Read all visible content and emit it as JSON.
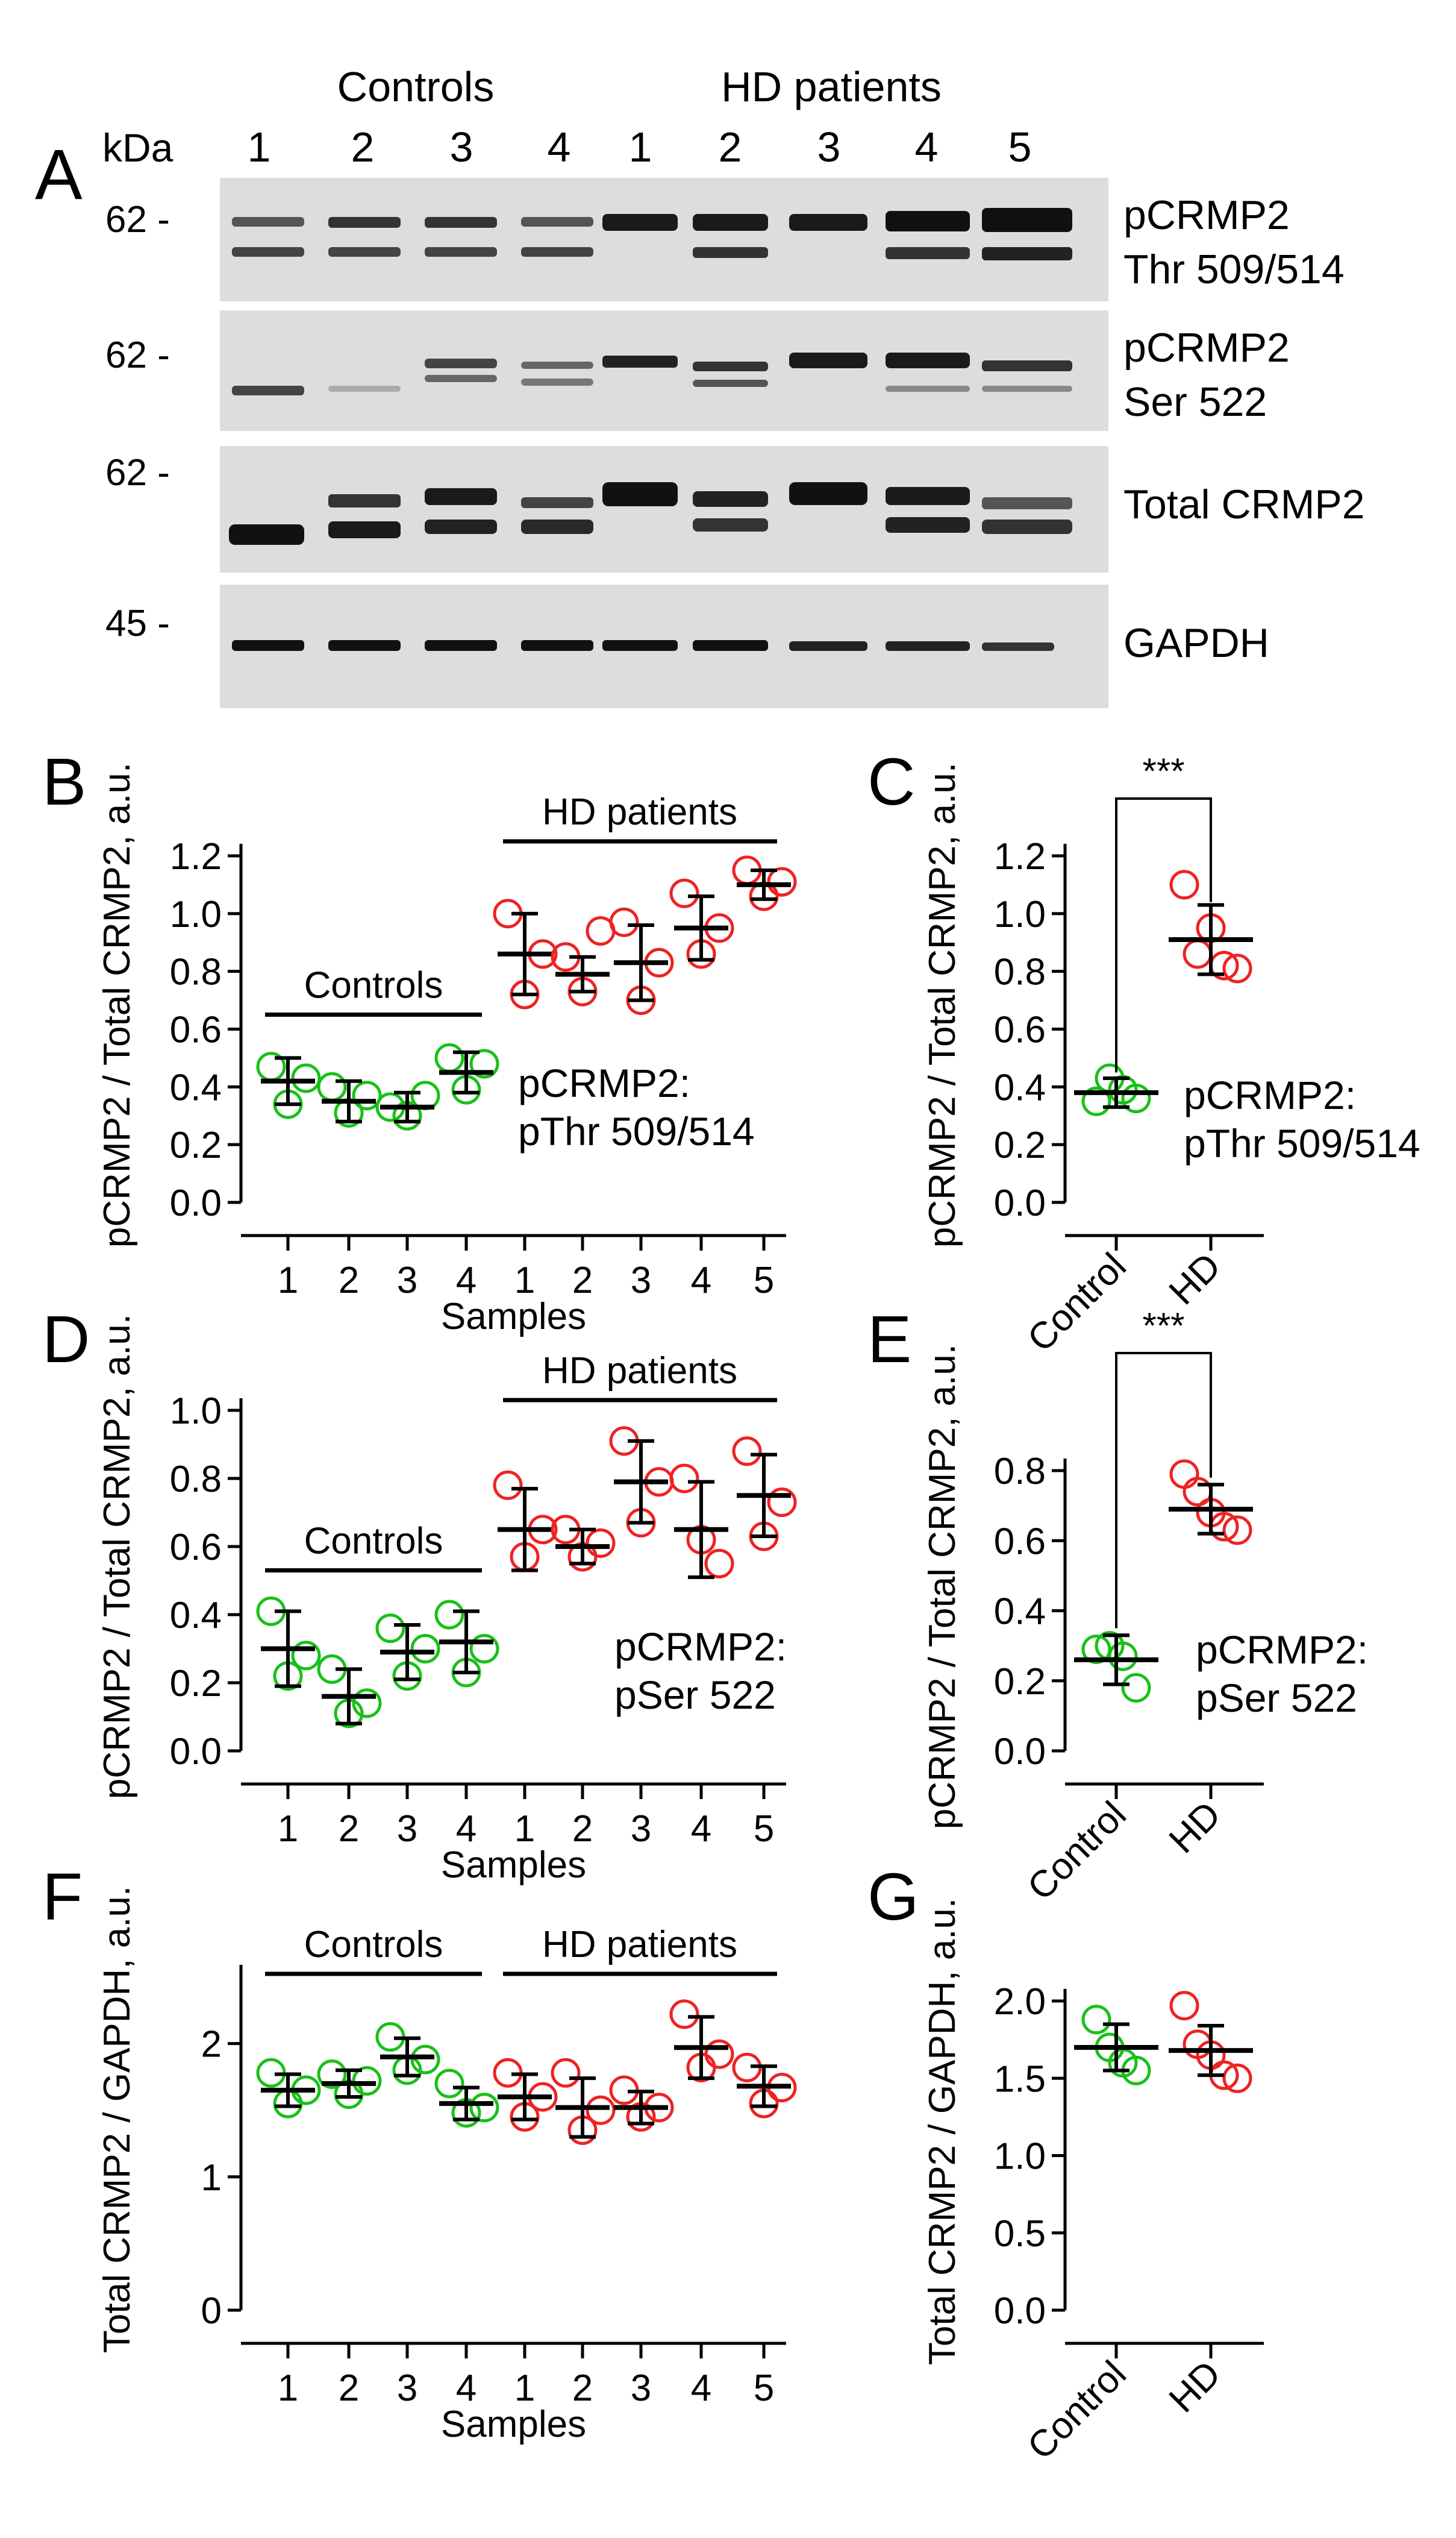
{
  "panel_letters": {
    "A": "A",
    "B": "B",
    "C": "C",
    "D": "D",
    "E": "E",
    "F": "F",
    "G": "G"
  },
  "blot": {
    "kda_label": "kDa",
    "group_controls": "Controls",
    "group_hd": "HD patients",
    "lane_numbers": [
      "1",
      "2",
      "3",
      "4",
      "1",
      "2",
      "3",
      "4",
      "5"
    ],
    "rows": [
      {
        "marker": "62 -",
        "label_line1": "pCRMP2",
        "label_line2": "Thr 509/514"
      },
      {
        "marker": "62 -",
        "label_line1": "pCRMP2",
        "label_line2": "Ser 522"
      },
      {
        "marker": "62 -",
        "label_line1": "Total CRMP2",
        "label_line2": ""
      },
      {
        "marker": "45 -",
        "label_line1": "GAPDH",
        "label_line2": ""
      }
    ]
  },
  "colors": {
    "control": "#19c019",
    "hd": "#ee2222",
    "bar": "#000000"
  },
  "chart_data": [
    {
      "id": "B",
      "type": "scatter",
      "ylabel": "pCRMP2 / Total CRMP2, a.u.",
      "xlabel": "Samples",
      "ylim": [
        0,
        1.2
      ],
      "yticks": [
        "0.0",
        "0.2",
        "0.4",
        "0.6",
        "0.8",
        "1.0",
        "1.2"
      ],
      "categories": [
        "1",
        "2",
        "3",
        "4",
        "1",
        "2",
        "3",
        "4",
        "5"
      ],
      "group_labels": [
        "Controls",
        "HD patients"
      ],
      "annotation": [
        "pCRMP2:",
        "pThr 509/514"
      ],
      "series": [
        {
          "name": "Controls",
          "color_key": "control",
          "groups": [
            {
              "mean": 0.42,
              "err": 0.08,
              "points": [
                0.47,
                0.34,
                0.43
              ]
            },
            {
              "mean": 0.35,
              "err": 0.07,
              "points": [
                0.4,
                0.31,
                0.37
              ]
            },
            {
              "mean": 0.33,
              "err": 0.05,
              "points": [
                0.33,
                0.3,
                0.37
              ]
            },
            {
              "mean": 0.45,
              "err": 0.07,
              "points": [
                0.5,
                0.39,
                0.48
              ]
            }
          ]
        },
        {
          "name": "HD patients",
          "color_key": "hd",
          "groups": [
            {
              "mean": 0.86,
              "err": 0.14,
              "points": [
                1.0,
                0.72,
                0.86
              ]
            },
            {
              "mean": 0.79,
              "err": 0.06,
              "points": [
                0.85,
                0.73,
                0.94
              ]
            },
            {
              "mean": 0.83,
              "err": 0.13,
              "points": [
                0.97,
                0.7,
                0.83
              ]
            },
            {
              "mean": 0.95,
              "err": 0.11,
              "points": [
                1.07,
                0.86,
                0.95
              ]
            },
            {
              "mean": 1.1,
              "err": 0.05,
              "points": [
                1.15,
                1.06,
                1.11
              ]
            }
          ]
        }
      ]
    },
    {
      "id": "C",
      "type": "scatter",
      "ylabel": "pCRMP2 / Total CRMP2, a.u.",
      "ylim": [
        0,
        1.2
      ],
      "yticks": [
        "0.0",
        "0.2",
        "0.4",
        "0.6",
        "0.8",
        "1.0",
        "1.2"
      ],
      "categories": [
        "Control",
        "HD"
      ],
      "significance": "***",
      "annotation": [
        "pCRMP2:",
        "pThr 509/514"
      ],
      "series": [
        {
          "name": "Control",
          "color_key": "control",
          "groups": [
            {
              "mean": 0.38,
              "err": 0.05,
              "points": [
                0.35,
                0.43,
                0.39,
                0.36
              ]
            }
          ]
        },
        {
          "name": "HD",
          "color_key": "hd",
          "groups": [
            {
              "mean": 0.91,
              "err": 0.12,
              "points": [
                1.1,
                0.86,
                0.95,
                0.82,
                0.81
              ]
            }
          ]
        }
      ]
    },
    {
      "id": "D",
      "type": "scatter",
      "ylabel": "pCRMP2 / Total CRMP2, a.u.",
      "xlabel": "Samples",
      "ylim": [
        0,
        1.0
      ],
      "yticks": [
        "0.0",
        "0.2",
        "0.4",
        "0.6",
        "0.8",
        "1.0"
      ],
      "categories": [
        "1",
        "2",
        "3",
        "4",
        "1",
        "2",
        "3",
        "4",
        "5"
      ],
      "group_labels": [
        "Controls",
        "HD patients"
      ],
      "annotation": [
        "pCRMP2:",
        "pSer 522"
      ],
      "series": [
        {
          "name": "Controls",
          "color_key": "control",
          "groups": [
            {
              "mean": 0.3,
              "err": 0.11,
              "points": [
                0.41,
                0.22,
                0.28
              ]
            },
            {
              "mean": 0.16,
              "err": 0.08,
              "points": [
                0.24,
                0.11,
                0.14
              ]
            },
            {
              "mean": 0.29,
              "err": 0.08,
              "points": [
                0.36,
                0.22,
                0.3
              ]
            },
            {
              "mean": 0.32,
              "err": 0.09,
              "points": [
                0.4,
                0.23,
                0.3
              ]
            }
          ]
        },
        {
          "name": "HD patients",
          "color_key": "hd",
          "groups": [
            {
              "mean": 0.65,
              "err": 0.12,
              "points": [
                0.78,
                0.57,
                0.65
              ]
            },
            {
              "mean": 0.6,
              "err": 0.05,
              "points": [
                0.65,
                0.57,
                0.61
              ]
            },
            {
              "mean": 0.79,
              "err": 0.12,
              "points": [
                0.91,
                0.67,
                0.79
              ]
            },
            {
              "mean": 0.65,
              "err": 0.14,
              "points": [
                0.8,
                0.62,
                0.55
              ]
            },
            {
              "mean": 0.75,
              "err": 0.12,
              "points": [
                0.88,
                0.63,
                0.73
              ]
            }
          ]
        }
      ]
    },
    {
      "id": "E",
      "type": "scatter",
      "ylabel": "pCRMP2 / Total CRMP2, a.u.",
      "ylim": [
        0,
        0.8
      ],
      "yticks": [
        "0.0",
        "0.2",
        "0.4",
        "0.6",
        "0.8"
      ],
      "categories": [
        "Control",
        "HD"
      ],
      "significance": "***",
      "annotation": [
        "pCRMP2:",
        "pSer 522"
      ],
      "series": [
        {
          "name": "Control",
          "color_key": "control",
          "groups": [
            {
              "mean": 0.26,
              "err": 0.07,
              "points": [
                0.29,
                0.3,
                0.27,
                0.18
              ]
            }
          ]
        },
        {
          "name": "HD",
          "color_key": "hd",
          "groups": [
            {
              "mean": 0.69,
              "err": 0.07,
              "points": [
                0.79,
                0.74,
                0.68,
                0.64,
                0.63
              ]
            }
          ]
        }
      ]
    },
    {
      "id": "F",
      "type": "scatter",
      "ylabel": "Total CRMP2 / GAPDH, a.u.",
      "xlabel": "Samples",
      "ylim": [
        0,
        2.5
      ],
      "yticks": [
        "0",
        "1",
        "2"
      ],
      "categories": [
        "1",
        "2",
        "3",
        "4",
        "1",
        "2",
        "3",
        "4",
        "5"
      ],
      "group_labels": [
        "Controls",
        "HD patients"
      ],
      "series": [
        {
          "name": "Controls",
          "color_key": "control",
          "groups": [
            {
              "mean": 1.65,
              "err": 0.12,
              "points": [
                1.78,
                1.55,
                1.65
              ]
            },
            {
              "mean": 1.7,
              "err": 0.1,
              "points": [
                1.77,
                1.62,
                1.72
              ]
            },
            {
              "mean": 1.9,
              "err": 0.14,
              "points": [
                2.05,
                1.8,
                1.88
              ]
            },
            {
              "mean": 1.55,
              "err": 0.12,
              "points": [
                1.7,
                1.48,
                1.52
              ]
            }
          ]
        },
        {
          "name": "HD patients",
          "color_key": "hd",
          "groups": [
            {
              "mean": 1.6,
              "err": 0.17,
              "points": [
                1.78,
                1.45,
                1.6
              ]
            },
            {
              "mean": 1.52,
              "err": 0.22,
              "points": [
                1.78,
                1.35,
                1.5
              ]
            },
            {
              "mean": 1.52,
              "err": 0.12,
              "points": [
                1.65,
                1.45,
                1.52
              ]
            },
            {
              "mean": 1.97,
              "err": 0.23,
              "points": [
                2.22,
                1.82,
                1.92
              ]
            },
            {
              "mean": 1.68,
              "err": 0.15,
              "points": [
                1.82,
                1.55,
                1.67
              ]
            }
          ]
        }
      ]
    },
    {
      "id": "G",
      "type": "scatter",
      "ylabel": "Total CRMP2 / GAPDH, a.u.",
      "ylim": [
        0,
        2.0
      ],
      "yticks": [
        "0.0",
        "0.5",
        "1.0",
        "1.5",
        "2.0"
      ],
      "categories": [
        "Control",
        "HD"
      ],
      "series": [
        {
          "name": "Control",
          "color_key": "control",
          "groups": [
            {
              "mean": 1.7,
              "err": 0.15,
              "points": [
                1.88,
                1.7,
                1.6,
                1.55
              ]
            }
          ]
        },
        {
          "name": "HD",
          "color_key": "hd",
          "groups": [
            {
              "mean": 1.68,
              "err": 0.16,
              "points": [
                1.97,
                1.72,
                1.65,
                1.52,
                1.5
              ]
            }
          ]
        }
      ]
    }
  ]
}
